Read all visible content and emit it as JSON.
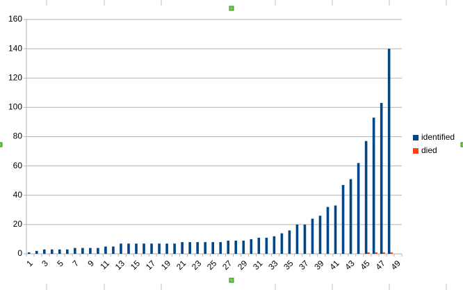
{
  "chart_data": {
    "type": "bar",
    "categories": [
      1,
      null,
      3,
      null,
      5,
      null,
      7,
      null,
      9,
      null,
      11,
      null,
      13,
      null,
      15,
      null,
      17,
      null,
      19,
      null,
      21,
      null,
      23,
      null,
      25,
      null,
      27,
      null,
      29,
      null,
      31,
      null,
      33,
      null,
      35,
      null,
      37,
      null,
      39,
      null,
      41,
      null,
      43,
      null,
      45,
      null,
      47,
      null,
      49
    ],
    "series": [
      {
        "name": "identified",
        "color": "#004586",
        "values": [
          1,
          2,
          3,
          3,
          3,
          3,
          4,
          4,
          4,
          4,
          5,
          5,
          7,
          7,
          7,
          7,
          7,
          7,
          7,
          7,
          8,
          8,
          8,
          8,
          8,
          8,
          9,
          9,
          9,
          10,
          11,
          11,
          12,
          14,
          16,
          20,
          20,
          24,
          26,
          32,
          33,
          47,
          51,
          62,
          77,
          93,
          103,
          140,
          null
        ]
      },
      {
        "name": "died",
        "color": "#ff420e",
        "values": [
          0,
          0,
          0,
          0,
          0,
          0,
          0,
          0,
          0,
          0,
          0,
          0,
          0,
          0,
          0,
          0,
          0,
          0,
          0,
          0,
          0,
          0,
          0,
          0,
          0,
          0,
          0,
          0,
          0,
          0,
          0,
          0,
          0,
          0,
          0,
          0,
          0,
          0,
          0,
          0,
          0,
          0,
          0,
          0,
          1,
          1,
          1,
          1,
          null
        ]
      }
    ],
    "ylim": [
      0,
      160
    ],
    "yticks": [
      0,
      20,
      40,
      60,
      80,
      100,
      120,
      140,
      160
    ],
    "grid": true,
    "legend": "right"
  }
}
